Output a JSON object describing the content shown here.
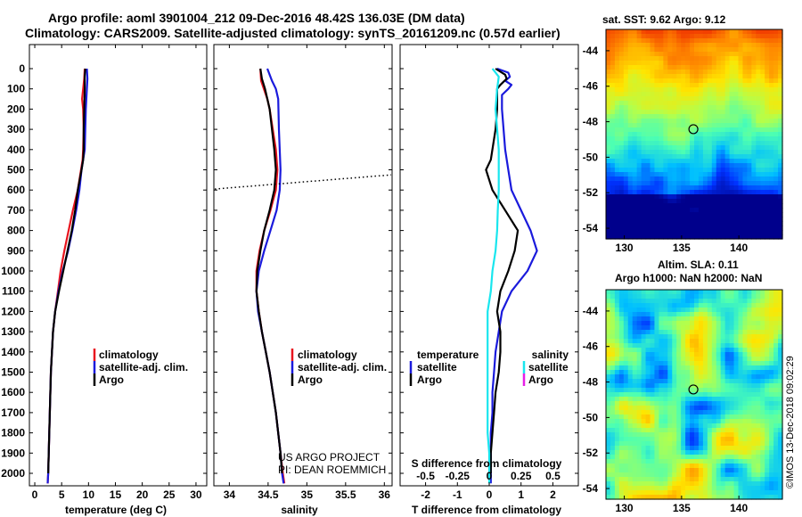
{
  "header": {
    "title_line1": "Argo profile: aoml 3901004_212 09-Dec-2016 48.42S 136.03E (DM data)",
    "title_line2": "Climatology: CARS2009. Satellite-adjusted climatology: synTS_20161209.nc (0.57d earlier)"
  },
  "depth_ticks": [
    "0",
    "100",
    "200",
    "300",
    "400",
    "500",
    "600",
    "700",
    "800",
    "900",
    "1000",
    "1100",
    "1200",
    "1300",
    "1400",
    "1500",
    "1600",
    "1700",
    "1800",
    "1900",
    "2000"
  ],
  "legend_colors": {
    "climatology": "#e8141e",
    "satellite": "#1a1adc",
    "argo": "#000000",
    "sal_satellite": "#19e6ee",
    "sal_argo": "#e61ee6"
  },
  "chart_data": [
    {
      "type": "line",
      "xlabel": "temperature (deg C)",
      "xticks": [
        "0",
        "5",
        "10",
        "15",
        "20",
        "25",
        "30"
      ],
      "xlim": [
        -1,
        32
      ],
      "ylim": [
        2060,
        0
      ],
      "y_inverted": true,
      "legend": {
        "position": "bottom-center",
        "climatology": "climatology",
        "satellite": "satellite-adj. clim.",
        "argo": "Argo"
      },
      "series": [
        {
          "key": "climatology",
          "color": "#e8141e",
          "points": [
            [
              9.3,
              0
            ],
            [
              9.2,
              50
            ],
            [
              9.0,
              100
            ],
            [
              8.8,
              150
            ],
            [
              9.0,
              200
            ],
            [
              9.1,
              300
            ],
            [
              9.0,
              400
            ],
            [
              8.9,
              450
            ],
            [
              8.6,
              500
            ],
            [
              8.0,
              600
            ],
            [
              7.1,
              700
            ],
            [
              6.3,
              800
            ],
            [
              5.5,
              900
            ],
            [
              4.8,
              1000
            ],
            [
              4.3,
              1100
            ],
            [
              3.8,
              1200
            ],
            [
              3.4,
              1300
            ],
            [
              3.2,
              1400
            ],
            [
              3.0,
              1500
            ],
            [
              2.9,
              1600
            ],
            [
              2.8,
              1700
            ],
            [
              2.7,
              1800
            ],
            [
              2.6,
              1900
            ],
            [
              2.5,
              2000
            ],
            [
              2.4,
              2050
            ]
          ]
        },
        {
          "key": "satellite",
          "color": "#1a1adc",
          "points": [
            [
              9.7,
              0
            ],
            [
              9.8,
              50
            ],
            [
              9.7,
              100
            ],
            [
              9.6,
              150
            ],
            [
              9.5,
              200
            ],
            [
              9.4,
              300
            ],
            [
              9.3,
              400
            ],
            [
              9.0,
              450
            ],
            [
              8.7,
              500
            ],
            [
              8.3,
              600
            ],
            [
              7.7,
              700
            ],
            [
              7.0,
              800
            ],
            [
              6.2,
              900
            ],
            [
              5.2,
              1000
            ],
            [
              4.4,
              1100
            ],
            [
              3.8,
              1200
            ],
            [
              3.4,
              1300
            ],
            [
              3.2,
              1400
            ],
            [
              3.0,
              1500
            ],
            [
              2.9,
              1600
            ],
            [
              2.8,
              1700
            ],
            [
              2.7,
              1800
            ],
            [
              2.6,
              1900
            ],
            [
              2.5,
              2000
            ],
            [
              2.4,
              2050
            ]
          ]
        },
        {
          "key": "argo",
          "color": "#000000",
          "points": [
            [
              9.4,
              0
            ],
            [
              9.3,
              40
            ],
            [
              9.3,
              100
            ],
            [
              9.2,
              200
            ],
            [
              9.1,
              300
            ],
            [
              9.1,
              400
            ],
            [
              9.0,
              450
            ],
            [
              8.7,
              500
            ],
            [
              8.0,
              600
            ],
            [
              7.5,
              700
            ],
            [
              6.9,
              800
            ],
            [
              6.1,
              900
            ],
            [
              5.3,
              1000
            ],
            [
              4.5,
              1100
            ],
            [
              3.8,
              1200
            ],
            [
              3.4,
              1300
            ],
            [
              3.2,
              1400
            ],
            [
              3.0,
              1500
            ],
            [
              2.9,
              1600
            ],
            [
              2.8,
              1700
            ],
            [
              2.7,
              1800
            ],
            [
              2.6,
              1900
            ],
            [
              2.5,
              2000
            ]
          ]
        }
      ]
    },
    {
      "type": "line",
      "xlabel": "salinity",
      "xticks": [
        "34",
        "34.5",
        "35",
        "35.5",
        "36"
      ],
      "xlim": [
        33.8,
        36.1
      ],
      "ylim": [
        2060,
        0
      ],
      "y_inverted": true,
      "annotation": [
        "US ARGO PROJECT",
        "PI: DEAN ROEMMICH"
      ],
      "legend": {
        "position": "bottom-center",
        "climatology": "climatology",
        "satellite": "satellite-adj. clim.",
        "argo": "Argo"
      },
      "series": [
        {
          "key": "climatology",
          "color": "#e8141e",
          "points": [
            [
              34.4,
              0
            ],
            [
              34.41,
              60
            ],
            [
              34.49,
              150
            ],
            [
              34.52,
              200
            ],
            [
              34.56,
              300
            ],
            [
              34.6,
              400
            ],
            [
              34.62,
              500
            ],
            [
              34.6,
              600
            ],
            [
              34.53,
              700
            ],
            [
              34.45,
              800
            ],
            [
              34.39,
              900
            ],
            [
              34.35,
              1000
            ],
            [
              34.35,
              1100
            ],
            [
              34.38,
              1200
            ],
            [
              34.42,
              1300
            ],
            [
              34.47,
              1400
            ],
            [
              34.52,
              1500
            ],
            [
              34.56,
              1600
            ],
            [
              34.6,
              1700
            ],
            [
              34.63,
              1800
            ],
            [
              34.66,
              1900
            ],
            [
              34.69,
              2000
            ],
            [
              34.71,
              2050
            ]
          ]
        },
        {
          "key": "satellite",
          "color": "#1a1adc",
          "points": [
            [
              34.49,
              0
            ],
            [
              34.52,
              30
            ],
            [
              34.55,
              60
            ],
            [
              34.6,
              100
            ],
            [
              34.63,
              150
            ],
            [
              34.64,
              300
            ],
            [
              34.65,
              400
            ],
            [
              34.66,
              500
            ],
            [
              34.65,
              600
            ],
            [
              34.61,
              700
            ],
            [
              34.53,
              800
            ],
            [
              34.45,
              900
            ],
            [
              34.38,
              1000
            ],
            [
              34.35,
              1100
            ],
            [
              34.37,
              1200
            ],
            [
              34.42,
              1300
            ],
            [
              34.47,
              1400
            ],
            [
              34.52,
              1500
            ],
            [
              34.56,
              1600
            ],
            [
              34.6,
              1700
            ],
            [
              34.63,
              1800
            ],
            [
              34.66,
              1900
            ],
            [
              34.68,
              2000
            ],
            [
              34.7,
              2050
            ]
          ]
        },
        {
          "key": "argo",
          "color": "#000000",
          "points": [
            [
              34.4,
              0
            ],
            [
              34.42,
              50
            ],
            [
              34.46,
              100
            ],
            [
              34.49,
              150
            ],
            [
              34.52,
              200
            ],
            [
              34.55,
              300
            ],
            [
              34.58,
              400
            ],
            [
              34.6,
              500
            ],
            [
              34.58,
              600
            ],
            [
              34.52,
              700
            ],
            [
              34.45,
              800
            ],
            [
              34.4,
              900
            ],
            [
              34.36,
              1000
            ],
            [
              34.35,
              1100
            ],
            [
              34.38,
              1200
            ],
            [
              34.42,
              1300
            ],
            [
              34.47,
              1400
            ],
            [
              34.52,
              1500
            ],
            [
              34.56,
              1600
            ],
            [
              34.6,
              1700
            ],
            [
              34.63,
              1800
            ],
            [
              34.66,
              1900
            ],
            [
              34.68,
              2000
            ]
          ]
        }
      ],
      "mixed_layer": {
        "depth_left": 595,
        "depth_right": 525
      }
    },
    {
      "type": "line",
      "xlabel": "T difference from climatology",
      "xticks": [
        "-2",
        "-1",
        "0",
        "1",
        "2"
      ],
      "xlim": [
        -2.8,
        2.8
      ],
      "upper_xlabel": "S difference from climatology",
      "upper_xticks": [
        "-0.5",
        "-0.25",
        "0",
        "0.25",
        "0.5"
      ],
      "ylim": [
        2060,
        0
      ],
      "y_inverted": true,
      "legend": {
        "left_title": "temperature",
        "right_title": "salinity",
        "left_satellite": "satellite",
        "left_argo": "Argo",
        "right_satellite": "satellite",
        "right_argo": "Argo"
      },
      "series": [
        {
          "key": "t_satellite",
          "color": "#1a1adc",
          "points": [
            [
              0.25,
              0
            ],
            [
              0.6,
              20
            ],
            [
              0.65,
              40
            ],
            [
              0.5,
              60
            ],
            [
              0.7,
              80
            ],
            [
              0.6,
              100
            ],
            [
              0.4,
              130
            ],
            [
              0.4,
              200
            ],
            [
              0.45,
              300
            ],
            [
              0.5,
              400
            ],
            [
              0.6,
              500
            ],
            [
              0.7,
              600
            ],
            [
              1.0,
              700
            ],
            [
              1.3,
              800
            ],
            [
              1.5,
              900
            ],
            [
              1.2,
              1000
            ],
            [
              0.7,
              1100
            ],
            [
              0.4,
              1200
            ],
            [
              0.3,
              1300
            ],
            [
              0.2,
              1400
            ],
            [
              0.15,
              1500
            ],
            [
              0.1,
              1600
            ],
            [
              0.1,
              1700
            ],
            [
              0.05,
              1800
            ],
            [
              0.05,
              1900
            ],
            [
              0.05,
              2000
            ],
            [
              0.05,
              2050
            ]
          ]
        },
        {
          "key": "t_argo",
          "color": "#000000",
          "points": [
            [
              0.2,
              0
            ],
            [
              0.5,
              30
            ],
            [
              0.55,
              50
            ],
            [
              0.35,
              80
            ],
            [
              0.25,
              100
            ],
            [
              0.25,
              200
            ],
            [
              0.2,
              300
            ],
            [
              0.05,
              450
            ],
            [
              -0.1,
              500
            ],
            [
              0.1,
              600
            ],
            [
              0.5,
              700
            ],
            [
              0.9,
              800
            ],
            [
              0.8,
              900
            ],
            [
              0.6,
              1000
            ],
            [
              0.35,
              1100
            ],
            [
              0.25,
              1200
            ],
            [
              0.35,
              1300
            ],
            [
              0.35,
              1400
            ],
            [
              0.3,
              1500
            ],
            [
              0.2,
              1600
            ],
            [
              0.15,
              1700
            ],
            [
              0.1,
              1800
            ],
            [
              0.05,
              1900
            ],
            [
              0.05,
              2000
            ]
          ]
        },
        {
          "key": "s_satellite",
          "color": "#19e6ee",
          "points": [
            [
              0.1,
              0
            ],
            [
              0.3,
              40
            ],
            [
              0.25,
              100
            ],
            [
              0.2,
              200
            ],
            [
              0.25,
              300
            ],
            [
              0.3,
              400
            ],
            [
              0.3,
              500
            ],
            [
              0.3,
              600
            ],
            [
              0.27,
              700
            ],
            [
              0.25,
              800
            ],
            [
              0.2,
              900
            ],
            [
              0.1,
              1000
            ],
            [
              0.05,
              1100
            ],
            [
              -0.05,
              1200
            ],
            [
              -0.05,
              1300
            ],
            [
              -0.05,
              1400
            ],
            [
              -0.05,
              1500
            ],
            [
              -0.05,
              1600
            ],
            [
              -0.05,
              1700
            ],
            [
              -0.05,
              1800
            ],
            [
              0.0,
              1900
            ],
            [
              0.0,
              2000
            ],
            [
              0.0,
              2050
            ]
          ]
        }
      ]
    }
  ],
  "map_sst": {
    "title": "sat. SST: 9.62  Argo: 9.12",
    "xticks": [
      "130",
      "135",
      "140"
    ],
    "yticks": [
      "-44",
      "-46",
      "-48",
      "-50",
      "-52",
      "-54"
    ],
    "xlim": [
      128.4,
      143.8
    ],
    "ylim": [
      -54.6,
      -42.8
    ],
    "float_position": [
      136.03,
      -48.42
    ]
  },
  "map_sla": {
    "title_line1": "Altim. SLA: 0.11",
    "title_line2": "Argo h1000: NaN h2000: NaN",
    "xticks": [
      "130",
      "135",
      "140"
    ],
    "yticks": [
      "-44",
      "-46",
      "-48",
      "-50",
      "-52",
      "-54"
    ],
    "xlim": [
      128.4,
      143.8
    ],
    "ylim": [
      -54.6,
      -42.8
    ],
    "float_position": [
      136.03,
      -48.42
    ]
  },
  "stamp": "©IMOS 13-Dec-2018 09:02:29"
}
